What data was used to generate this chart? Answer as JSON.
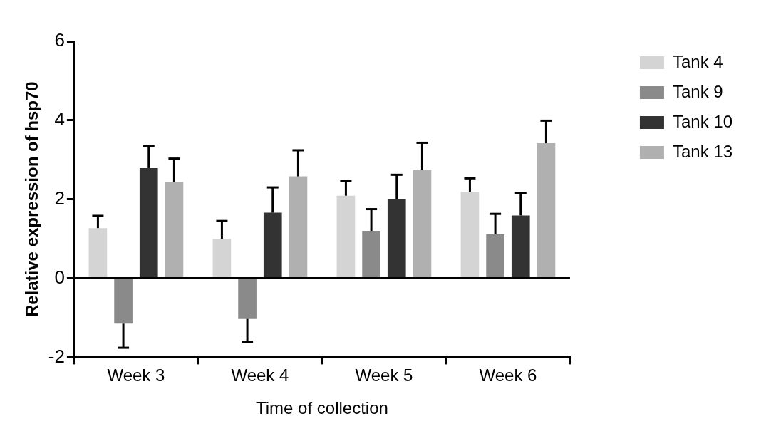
{
  "chart_data": {
    "type": "bar",
    "xlabel": "Time of collection",
    "ylabel": "Relative expression of hsp70",
    "categories": [
      "Week 3",
      "Week 4",
      "Week 5",
      "Week 6"
    ],
    "series": [
      {
        "name": "Tank 4",
        "color": "#d4d4d4",
        "values": [
          1.27,
          1.0,
          2.09,
          2.19
        ],
        "errors": [
          [
            1.27,
            1.58
          ],
          [
            1.0,
            1.45
          ],
          [
            2.09,
            2.46
          ],
          [
            2.19,
            2.53
          ]
        ]
      },
      {
        "name": "Tank 9",
        "color": "#8a8a8a",
        "values": [
          -1.15,
          -1.03,
          1.2,
          1.11
        ],
        "errors": [
          [
            -1.76,
            -1.15
          ],
          [
            -1.61,
            -1.03
          ],
          [
            1.2,
            1.75
          ],
          [
            1.11,
            1.63
          ]
        ]
      },
      {
        "name": "Tank 10",
        "color": "#333333",
        "values": [
          2.79,
          1.66,
          2.0,
          1.59
        ],
        "errors": [
          [
            2.79,
            3.34
          ],
          [
            1.66,
            2.3
          ],
          [
            2.0,
            2.62
          ],
          [
            1.59,
            2.16
          ]
        ]
      },
      {
        "name": "Tank 13",
        "color": "#b0b0b0",
        "values": [
          2.43,
          2.58,
          2.75,
          3.42
        ],
        "errors": [
          [
            2.43,
            3.03
          ],
          [
            2.58,
            3.24
          ],
          [
            2.75,
            3.43
          ],
          [
            3.42,
            3.99
          ]
        ]
      }
    ],
    "ylim": [
      -2,
      6
    ],
    "yticks": [
      -2,
      0,
      2,
      4,
      6
    ],
    "grid": false,
    "legend": "top right",
    "ref_lines": [
      {
        "axis": "y",
        "value": 0,
        "color": "#000000"
      }
    ]
  }
}
